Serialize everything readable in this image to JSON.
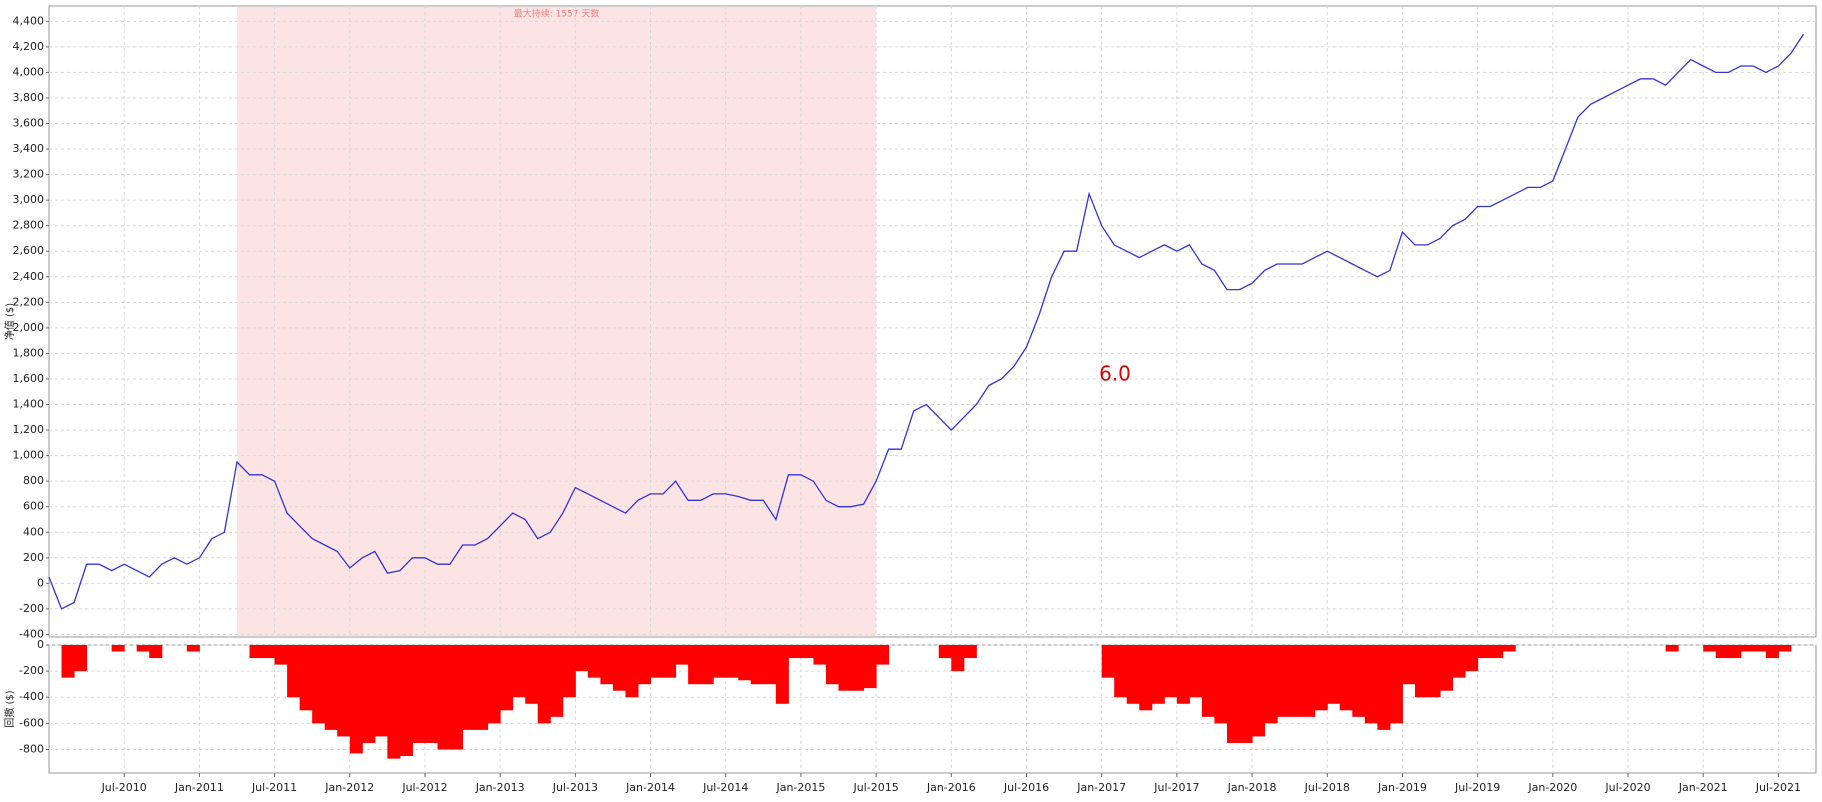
{
  "chart_data": [
    {
      "type": "line",
      "y_label": "净值 ($)",
      "annotation": "最大持续: 1557 天数",
      "note": "6.0",
      "highlight": [
        "2011-04",
        "2015-07"
      ],
      "highlight_color": "#fde4e4",
      "grid": true,
      "xlim": [
        "2010-01",
        "2021-10"
      ],
      "x": [
        "2010-01",
        "2010-02",
        "2010-03",
        "2010-04",
        "2010-05",
        "2010-06",
        "2010-07",
        "2010-08",
        "2010-09",
        "2010-10",
        "2010-11",
        "2010-12",
        "2011-01",
        "2011-02",
        "2011-03",
        "2011-04",
        "2011-05",
        "2011-06",
        "2011-07",
        "2011-08",
        "2011-09",
        "2011-10",
        "2011-11",
        "2011-12",
        "2012-01",
        "2012-02",
        "2012-03",
        "2012-04",
        "2012-05",
        "2012-06",
        "2012-07",
        "2012-08",
        "2012-09",
        "2012-10",
        "2012-11",
        "2012-12",
        "2013-01",
        "2013-02",
        "2013-03",
        "2013-04",
        "2013-05",
        "2013-06",
        "2013-07",
        "2013-08",
        "2013-09",
        "2013-10",
        "2013-11",
        "2013-12",
        "2014-01",
        "2014-02",
        "2014-03",
        "2014-04",
        "2014-05",
        "2014-06",
        "2014-07",
        "2014-08",
        "2014-09",
        "2014-10",
        "2014-11",
        "2014-12",
        "2015-01",
        "2015-02",
        "2015-03",
        "2015-04",
        "2015-05",
        "2015-06",
        "2015-07",
        "2015-08",
        "2015-09",
        "2015-10",
        "2015-11",
        "2015-12",
        "2016-01",
        "2016-02",
        "2016-03",
        "2016-04",
        "2016-05",
        "2016-06",
        "2016-07",
        "2016-08",
        "2016-09",
        "2016-10",
        "2016-11",
        "2016-12",
        "2017-01",
        "2017-02",
        "2017-03",
        "2017-04",
        "2017-05",
        "2017-06",
        "2017-07",
        "2017-08",
        "2017-09",
        "2017-10",
        "2017-11",
        "2017-12",
        "2018-01",
        "2018-02",
        "2018-03",
        "2018-04",
        "2018-05",
        "2018-06",
        "2018-07",
        "2018-08",
        "2018-09",
        "2018-10",
        "2018-11",
        "2018-12",
        "2019-01",
        "2019-02",
        "2019-03",
        "2019-04",
        "2019-05",
        "2019-06",
        "2019-07",
        "2019-08",
        "2019-09",
        "2019-10",
        "2019-11",
        "2019-12",
        "2020-01",
        "2020-02",
        "2020-03",
        "2020-04",
        "2020-05",
        "2020-06",
        "2020-07",
        "2020-08",
        "2020-09",
        "2020-10",
        "2020-11",
        "2020-12",
        "2021-01",
        "2021-02",
        "2021-03",
        "2021-04",
        "2021-05",
        "2021-06",
        "2021-07",
        "2021-08",
        "2021-09"
      ],
      "series": [
        {
          "color": "#3333dd",
          "values": [
            50,
            -200,
            -150,
            150,
            150,
            100,
            150,
            100,
            50,
            150,
            200,
            150,
            200,
            350,
            400,
            950,
            850,
            850,
            800,
            550,
            450,
            350,
            300,
            250,
            120,
            200,
            250,
            80,
            100,
            200,
            200,
            150,
            150,
            300,
            300,
            350,
            450,
            550,
            500,
            350,
            400,
            550,
            750,
            700,
            650,
            600,
            550,
            650,
            700,
            700,
            800,
            650,
            650,
            700,
            700,
            680,
            650,
            650,
            500,
            850,
            850,
            800,
            650,
            600,
            600,
            620,
            800,
            1050,
            1050,
            1350,
            1400,
            1300,
            1200,
            1300,
            1400,
            1550,
            1600,
            1700,
            1850,
            2100,
            2400,
            2600,
            2600,
            3050,
            2800,
            2650,
            2600,
            2550,
            2600,
            2650,
            2600,
            2650,
            2500,
            2450,
            2300,
            2300,
            2350,
            2450,
            2500,
            2500,
            2500,
            2550,
            2600,
            2550,
            2500,
            2450,
            2400,
            2450,
            2750,
            2650,
            2650,
            2700,
            2800,
            2850,
            2950,
            2950,
            3000,
            3050,
            3100,
            3100,
            3150,
            3400,
            3650,
            3750,
            3800,
            3850,
            3900,
            3950,
            3950,
            3900,
            4000,
            4100,
            4050,
            4000,
            4000,
            4050,
            4050,
            4000,
            4050,
            4150,
            4300
          ]
        }
      ],
      "ylim": [
        -420,
        4520
      ],
      "yticks": [
        -400,
        -200,
        0,
        200,
        400,
        600,
        800,
        {
          "value": 1000,
          "label": "1,000"
        },
        {
          "value": 1200,
          "label": "1,200"
        },
        {
          "value": 1400,
          "label": "1,400"
        },
        {
          "value": 1600,
          "label": "1,600"
        },
        {
          "value": 1800,
          "label": "1,800"
        },
        {
          "value": 2000,
          "label": "2,000"
        },
        {
          "value": 2200,
          "label": "2,200"
        },
        {
          "value": 2400,
          "label": "2,400"
        },
        {
          "value": 2600,
          "label": "2,600"
        },
        {
          "value": 2800,
          "label": "2,800"
        },
        {
          "value": 3000,
          "label": "3,000"
        },
        {
          "value": 3200,
          "label": "3,200"
        },
        {
          "value": 3400,
          "label": "3,400"
        },
        {
          "value": 3600,
          "label": "3,600"
        },
        {
          "value": 3800,
          "label": "3,800"
        },
        {
          "value": 4000,
          "label": "4,000"
        },
        {
          "value": 4200,
          "label": "4,200"
        },
        {
          "value": 4400,
          "label": "4,400"
        }
      ],
      "xticks": [
        {
          "value": "2010-07",
          "label": "Jul-2010"
        },
        {
          "value": "2011-01",
          "label": "Jan-2011"
        },
        {
          "value": "2011-07",
          "label": "Jul-2011"
        },
        {
          "value": "2012-01",
          "label": "Jan-2012"
        },
        {
          "value": "2012-07",
          "label": "Jul-2012"
        },
        {
          "value": "2013-01",
          "label": "Jan-2013"
        },
        {
          "value": "2013-07",
          "label": "Jul-2013"
        },
        {
          "value": "2014-01",
          "label": "Jan-2014"
        },
        {
          "value": "2014-07",
          "label": "Jul-2014"
        },
        {
          "value": "2015-01",
          "label": "Jan-2015"
        },
        {
          "value": "2015-07",
          "label": "Jul-2015"
        },
        {
          "value": "2016-01",
          "label": "Jan-2016"
        },
        {
          "value": "2016-07",
          "label": "Jul-2016"
        },
        {
          "value": "2017-01",
          "label": "Jan-2017"
        },
        {
          "value": "2017-07",
          "label": "Jul-2017"
        },
        {
          "value": "2018-01",
          "label": "Jan-2018"
        },
        {
          "value": "2018-07",
          "label": "Jul-2018"
        },
        {
          "value": "2019-01",
          "label": "Jan-2019"
        },
        {
          "value": "2019-07",
          "label": "Jul-2019"
        },
        {
          "value": "2020-01",
          "label": "Jan-2020"
        },
        {
          "value": "2020-07",
          "label": "Jul-2020"
        },
        {
          "value": "2021-01",
          "label": "Jan-2021"
        },
        {
          "value": "2021-07",
          "label": "Jul-2021"
        }
      ]
    },
    {
      "type": "bar",
      "y_label": "回撤 ($)",
      "grid": true,
      "color": "#ff0000",
      "xlim": [
        "2010-01",
        "2021-10"
      ],
      "x": [
        "2010-01",
        "2010-02",
        "2010-03",
        "2010-04",
        "2010-05",
        "2010-06",
        "2010-07",
        "2010-08",
        "2010-09",
        "2010-10",
        "2010-11",
        "2010-12",
        "2011-01",
        "2011-02",
        "2011-03",
        "2011-04",
        "2011-05",
        "2011-06",
        "2011-07",
        "2011-08",
        "2011-09",
        "2011-10",
        "2011-11",
        "2011-12",
        "2012-01",
        "2012-02",
        "2012-03",
        "2012-04",
        "2012-05",
        "2012-06",
        "2012-07",
        "2012-08",
        "2012-09",
        "2012-10",
        "2012-11",
        "2012-12",
        "2013-01",
        "2013-02",
        "2013-03",
        "2013-04",
        "2013-05",
        "2013-06",
        "2013-07",
        "2013-08",
        "2013-09",
        "2013-10",
        "2013-11",
        "2013-12",
        "2014-01",
        "2014-02",
        "2014-03",
        "2014-04",
        "2014-05",
        "2014-06",
        "2014-07",
        "2014-08",
        "2014-09",
        "2014-10",
        "2014-11",
        "2014-12",
        "2015-01",
        "2015-02",
        "2015-03",
        "2015-04",
        "2015-05",
        "2015-06",
        "2015-07",
        "2015-08",
        "2015-09",
        "2015-10",
        "2015-11",
        "2015-12",
        "2016-01",
        "2016-02",
        "2016-03",
        "2016-04",
        "2016-05",
        "2016-06",
        "2016-07",
        "2016-08",
        "2016-09",
        "2016-10",
        "2016-11",
        "2016-12",
        "2017-01",
        "2017-02",
        "2017-03",
        "2017-04",
        "2017-05",
        "2017-06",
        "2017-07",
        "2017-08",
        "2017-09",
        "2017-10",
        "2017-11",
        "2017-12",
        "2018-01",
        "2018-02",
        "2018-03",
        "2018-04",
        "2018-05",
        "2018-06",
        "2018-07",
        "2018-08",
        "2018-09",
        "2018-10",
        "2018-11",
        "2018-12",
        "2019-01",
        "2019-02",
        "2019-03",
        "2019-04",
        "2019-05",
        "2019-06",
        "2019-07",
        "2019-08",
        "2019-09",
        "2019-10",
        "2019-11",
        "2019-12",
        "2020-01",
        "2020-02",
        "2020-03",
        "2020-04",
        "2020-05",
        "2020-06",
        "2020-07",
        "2020-08",
        "2020-09",
        "2020-10",
        "2020-11",
        "2020-12",
        "2021-01",
        "2021-02",
        "2021-03",
        "2021-04",
        "2021-05",
        "2021-06",
        "2021-07",
        "2021-08",
        "2021-09"
      ],
      "values": [
        0,
        -250,
        -200,
        0,
        0,
        -50,
        0,
        -50,
        -100,
        0,
        0,
        -50,
        0,
        0,
        0,
        0,
        -100,
        -100,
        -150,
        -400,
        -500,
        -600,
        -650,
        -700,
        -830,
        -750,
        -700,
        -870,
        -850,
        -750,
        -750,
        -800,
        -800,
        -650,
        -650,
        -600,
        -500,
        -400,
        -450,
        -600,
        -550,
        -400,
        -200,
        -250,
        -300,
        -350,
        -400,
        -300,
        -250,
        -250,
        -150,
        -300,
        -300,
        -250,
        -250,
        -270,
        -300,
        -300,
        -450,
        -100,
        -100,
        -150,
        -300,
        -350,
        -350,
        -330,
        -150,
        0,
        0,
        0,
        0,
        -100,
        -200,
        -100,
        0,
        0,
        0,
        0,
        0,
        0,
        0,
        0,
        0,
        0,
        -250,
        -400,
        -450,
        -500,
        -450,
        -400,
        -450,
        -400,
        -550,
        -600,
        -750,
        -750,
        -700,
        -600,
        -550,
        -550,
        -550,
        -500,
        -450,
        -500,
        -550,
        -600,
        -650,
        -600,
        -300,
        -400,
        -400,
        -350,
        -250,
        -200,
        -100,
        -100,
        -50,
        0,
        0,
        0,
        0,
        0,
        0,
        0,
        0,
        0,
        0,
        0,
        0,
        -50,
        0,
        0,
        -50,
        -100,
        -100,
        -50,
        -50,
        -100,
        -50,
        0,
        0
      ],
      "ylim": [
        -980,
        0
      ],
      "yticks": [
        0,
        -200,
        -400,
        -600,
        -800
      ],
      "xticks": [
        {
          "value": "2010-07",
          "label": "Jul-2010"
        },
        {
          "value": "2011-01",
          "label": "Jan-2011"
        },
        {
          "value": "2011-07",
          "label": "Jul-2011"
        },
        {
          "value": "2012-01",
          "label": "Jan-2012"
        },
        {
          "value": "2012-07",
          "label": "Jul-2012"
        },
        {
          "value": "2013-01",
          "label": "Jan-2013"
        },
        {
          "value": "2013-07",
          "label": "Jul-2013"
        },
        {
          "value": "2014-01",
          "label": "Jan-2014"
        },
        {
          "value": "2014-07",
          "label": "Jul-2014"
        },
        {
          "value": "2015-01",
          "label": "Jan-2015"
        },
        {
          "value": "2015-07",
          "label": "Jul-2015"
        },
        {
          "value": "2016-01",
          "label": "Jan-2016"
        },
        {
          "value": "2016-07",
          "label": "Jul-2016"
        },
        {
          "value": "2017-01",
          "label": "Jan-2017"
        },
        {
          "value": "2017-07",
          "label": "Jul-2017"
        },
        {
          "value": "2018-01",
          "label": "Jan-2018"
        },
        {
          "value": "2018-07",
          "label": "Jul-2018"
        },
        {
          "value": "2019-01",
          "label": "Jan-2019"
        },
        {
          "value": "2019-07",
          "label": "Jul-2019"
        },
        {
          "value": "2020-01",
          "label": "Jan-2020"
        },
        {
          "value": "2020-07",
          "label": "Jul-2020"
        },
        {
          "value": "2021-01",
          "label": "Jan-2021"
        },
        {
          "value": "2021-07",
          "label": "Jul-2021"
        }
      ]
    }
  ]
}
